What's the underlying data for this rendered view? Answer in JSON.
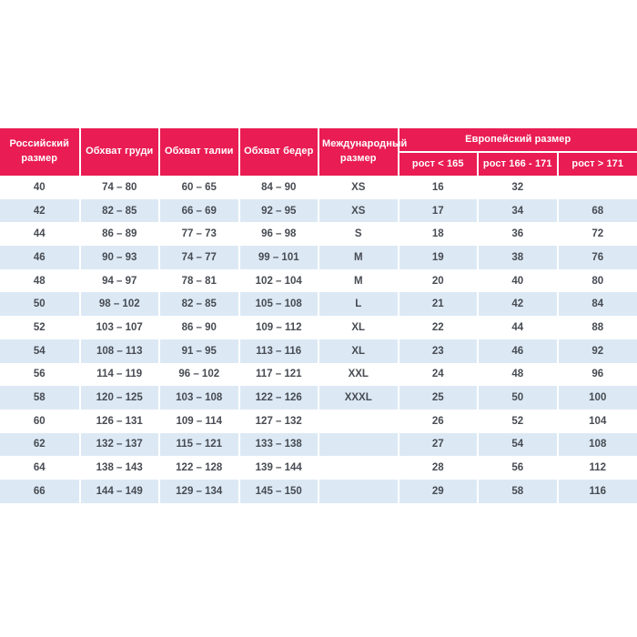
{
  "chart_data": {
    "type": "table",
    "header": {
      "russian_size": "Российский размер",
      "chest": "Обхват груди",
      "waist": "Обхват талии",
      "hips": "Обхват бедер",
      "international_size": "Международный размер",
      "european_group": "Европейский размер",
      "height_under_165": "рост < 165",
      "height_166_171": "рост 166 - 171",
      "height_over_171": "рост > 171"
    },
    "rows": [
      [
        "40",
        "74 – 80",
        "60 – 65",
        "84 – 90",
        "XS",
        "16",
        "32",
        ""
      ],
      [
        "42",
        "82 – 85",
        "66 – 69",
        "92 – 95",
        "XS",
        "17",
        "34",
        "68"
      ],
      [
        "44",
        "86 – 89",
        "77 – 73",
        "96 – 98",
        "S",
        "18",
        "36",
        "72"
      ],
      [
        "46",
        "90 – 93",
        "74 – 77",
        "99 – 101",
        "M",
        "19",
        "38",
        "76"
      ],
      [
        "48",
        "94 – 97",
        "78 – 81",
        "102 – 104",
        "M",
        "20",
        "40",
        "80"
      ],
      [
        "50",
        "98 – 102",
        "82 – 85",
        "105 – 108",
        "L",
        "21",
        "42",
        "84"
      ],
      [
        "52",
        "103 – 107",
        "86 – 90",
        "109 – 112",
        "XL",
        "22",
        "44",
        "88"
      ],
      [
        "54",
        "108 – 113",
        "91 – 95",
        "113 – 116",
        "XL",
        "23",
        "46",
        "92"
      ],
      [
        "56",
        "114 – 119",
        "96 – 102",
        "117 – 121",
        "XXL",
        "24",
        "48",
        "96"
      ],
      [
        "58",
        "120 – 125",
        "103 – 108",
        "122 – 126",
        "XXXL",
        "25",
        "50",
        "100"
      ],
      [
        "60",
        "126 – 131",
        "109 – 114",
        "127 – 132",
        "",
        "26",
        "52",
        "104"
      ],
      [
        "62",
        "132 – 137",
        "115 – 121",
        "133 – 138",
        "",
        "27",
        "54",
        "108"
      ],
      [
        "64",
        "138 – 143",
        "122 – 128",
        "139 – 144",
        "",
        "28",
        "56",
        "112"
      ],
      [
        "66",
        "144 – 149",
        "129 – 134",
        "145 – 150",
        "",
        "29",
        "58",
        "116"
      ]
    ]
  },
  "colors": {
    "header_bg": "#e91c53",
    "header_text": "#ffffff",
    "row_bg": "#ffffff",
    "row_alt_bg": "#dce9f5",
    "data_text": "#474b52"
  }
}
